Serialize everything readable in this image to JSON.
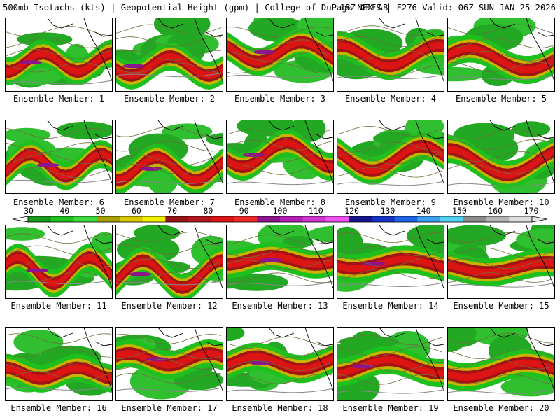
{
  "header": {
    "left": "500mb Isotachs (kts) | Geopotential Height (gpm) | College of DuPage NEXLAB",
    "right": "18Z GEFS | F276 Valid: 06Z SUN JAN 25 2026"
  },
  "colorbar": {
    "ticks": [
      "30",
      "40",
      "50",
      "60",
      "70",
      "80",
      "90",
      "100",
      "110",
      "120",
      "130",
      "140",
      "150",
      "160",
      "170"
    ],
    "colors": [
      "#1a9a1a",
      "#1ec01e",
      "#3cdc3c",
      "#a8a000",
      "#dcc800",
      "#f0f000",
      "#961414",
      "#b4141e",
      "#dc1414",
      "#f02828",
      "#8c148c",
      "#b41eb4",
      "#d232d2",
      "#f050f0",
      "#14148c",
      "#1432c8",
      "#1e64e6",
      "#3ca0f0",
      "#50d2f0",
      "#8c8c8c",
      "#b4b4b4",
      "#dcdcdc"
    ]
  },
  "panels": [
    {
      "label": "Ensemble Member: 1"
    },
    {
      "label": "Ensemble Member: 2"
    },
    {
      "label": "Ensemble Member: 3"
    },
    {
      "label": "Ensemble Member: 4"
    },
    {
      "label": "Ensemble Member: 5"
    },
    {
      "label": "Ensemble Member: 6"
    },
    {
      "label": "Ensemble Member: 7"
    },
    {
      "label": "Ensemble Member: 8"
    },
    {
      "label": "Ensemble Member: 9"
    },
    {
      "label": "Ensemble Member: 10"
    },
    {
      "label": "Ensemble Member: 11"
    },
    {
      "label": "Ensemble Member: 12"
    },
    {
      "label": "Ensemble Member: 13"
    },
    {
      "label": "Ensemble Member: 14"
    },
    {
      "label": "Ensemble Member: 15"
    },
    {
      "label": "Ensemble Member: 16"
    },
    {
      "label": "Ensemble Member: 17"
    },
    {
      "label": "Ensemble Member: 18"
    },
    {
      "label": "Ensemble Member: 19"
    },
    {
      "label": "Ensemble Member: 20"
    }
  ]
}
